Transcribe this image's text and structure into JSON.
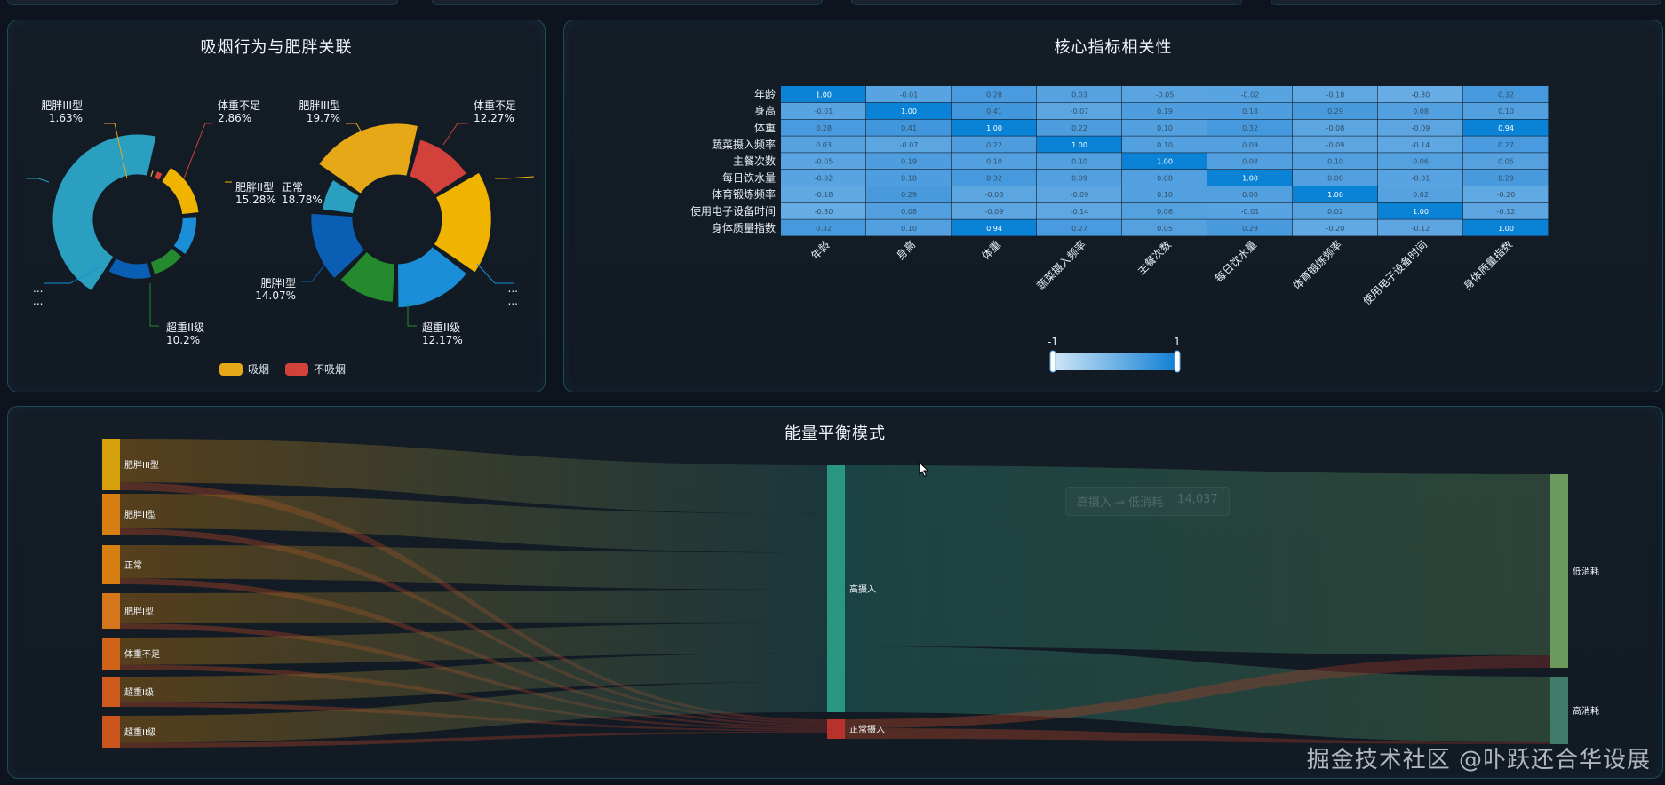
{
  "top_tabs": [
    "",
    "",
    "",
    ""
  ],
  "donut_panel": {
    "title": "吸烟行为与肥胖关联",
    "legend": [
      {
        "label": "吸烟",
        "color": "#e6a817"
      },
      {
        "label": "不吸烟",
        "color": "#d2413a"
      }
    ]
  },
  "heatmap_panel": {
    "title": "核心指标相关性",
    "scale_min_label": "-1",
    "scale_max_label": "1"
  },
  "sankey_panel": {
    "title": "能量平衡模式",
    "tooltip": {
      "label": "高摄入 → 低消耗",
      "value": "14,037"
    }
  },
  "watermark": "掘金技术社区 @卟跃还合华设展",
  "chart_data": [
    {
      "type": "pie",
      "subtype": "donut",
      "series_name": "吸烟",
      "slices": [
        {
          "label": "肥胖III型",
          "value": 1.63,
          "color": "#e6a817"
        },
        {
          "label": "体重不足",
          "value": 2.86,
          "color": "#d2413a"
        },
        {
          "label": "肥胖II型",
          "value": 15.28,
          "color": "#f0b400"
        },
        {
          "label": "",
          "value": 11.9,
          "color": "#1a8fd8"
        },
        {
          "label": "超重II级",
          "value": 10.2,
          "color": "#248a2d"
        },
        {
          "label": "",
          "value": 12.8,
          "color": "#0a5fb4"
        },
        {
          "label": "",
          "value": 45.33,
          "color": "#2a9fbf"
        }
      ],
      "labels_visible": [
        {
          "name": "肥胖III型",
          "pct": "1.63%"
        },
        {
          "name": "体重不足",
          "pct": "2.86%"
        },
        {
          "name": "肥胖II型",
          "pct": "15.28%"
        },
        {
          "name": "超重II级",
          "pct": "10.2%"
        },
        {
          "name": "...",
          "pct": "..."
        }
      ]
    },
    {
      "type": "pie",
      "subtype": "donut",
      "series_name": "不吸烟",
      "slices": [
        {
          "label": "体重不足",
          "value": 12.27,
          "color": "#d2413a"
        },
        {
          "label": "正常",
          "value": 18.78,
          "color": "#f0b400"
        },
        {
          "label": "",
          "value": 15.3,
          "color": "#1a8fd8"
        },
        {
          "label": "超重II级",
          "value": 12.17,
          "color": "#248a2d"
        },
        {
          "label": "肥胖I型",
          "value": 14.07,
          "color": "#0a5fb4"
        },
        {
          "label": "",
          "value": 7.71,
          "color": "#2a9fbf"
        },
        {
          "label": "肥胖III型",
          "value": 19.7,
          "color": "#e6a817"
        }
      ],
      "labels_visible": [
        {
          "name": "肥胖III型",
          "pct": "19.7%"
        },
        {
          "name": "体重不足",
          "pct": "12.27%"
        },
        {
          "name": "正常",
          "pct": "18.78%"
        },
        {
          "name": "肥胖I型",
          "pct": "14.07%"
        },
        {
          "name": "超重II级",
          "pct": "12.17%"
        },
        {
          "name": "...",
          "pct": "..."
        }
      ]
    },
    {
      "type": "heatmap",
      "rows": [
        "年龄",
        "身高",
        "体重",
        "蔬菜摄入频率",
        "主餐次数",
        "每日饮水量",
        "体育锻炼频率",
        "使用电子设备时间",
        "身体质量指数"
      ],
      "cols": [
        "年龄",
        "身高",
        "体重",
        "蔬菜摄入频率",
        "主餐次数",
        "每日饮水量",
        "体育锻炼频率",
        "使用电子设备时间",
        "身体质量指数"
      ],
      "values": [
        [
          1.0,
          -0.01,
          0.28,
          0.03,
          -0.05,
          -0.02,
          -0.18,
          -0.3,
          0.32
        ],
        [
          -0.01,
          1.0,
          0.41,
          -0.07,
          0.19,
          0.18,
          0.29,
          0.08,
          0.1
        ],
        [
          0.28,
          0.41,
          1.0,
          0.22,
          0.1,
          0.32,
          -0.08,
          -0.09,
          0.94
        ],
        [
          0.03,
          -0.07,
          0.22,
          1.0,
          0.1,
          0.09,
          -0.09,
          -0.14,
          0.27
        ],
        [
          -0.05,
          0.19,
          0.1,
          0.1,
          1.0,
          0.08,
          0.1,
          0.06,
          0.05
        ],
        [
          -0.02,
          0.18,
          0.32,
          0.09,
          0.08,
          1.0,
          0.08,
          -0.01,
          0.29
        ],
        [
          -0.18,
          0.29,
          -0.08,
          -0.09,
          0.1,
          0.08,
          1.0,
          0.02,
          -0.2
        ],
        [
          -0.3,
          0.08,
          -0.09,
          -0.14,
          0.06,
          -0.01,
          0.02,
          1.0,
          -0.12
        ],
        [
          0.32,
          0.1,
          0.94,
          0.27,
          0.05,
          0.29,
          -0.2,
          -0.12,
          1.0
        ]
      ],
      "visual_map_range": [
        -1,
        1
      ]
    },
    {
      "type": "sankey",
      "nodes_left": [
        {
          "name": "肥胖III型",
          "color": "#d4a10c"
        },
        {
          "name": "肥胖II型",
          "color": "#d77f13"
        },
        {
          "name": "正常",
          "color": "#d77f13"
        },
        {
          "name": "肥胖I型",
          "color": "#d5761a"
        },
        {
          "name": "体重不足",
          "color": "#cf6419"
        },
        {
          "name": "超重I级",
          "color": "#cc5a1c"
        },
        {
          "name": "超重II级",
          "color": "#cb561d"
        }
      ],
      "nodes_mid": [
        {
          "name": "高摄入",
          "color": "#2a9680"
        },
        {
          "name": "正常摄入",
          "color": "#b8322c"
        }
      ],
      "nodes_right": [
        {
          "name": "低消耗",
          "color": "#6a9a5c"
        },
        {
          "name": "高消耗",
          "color": "#3f7a6a"
        }
      ]
    }
  ]
}
